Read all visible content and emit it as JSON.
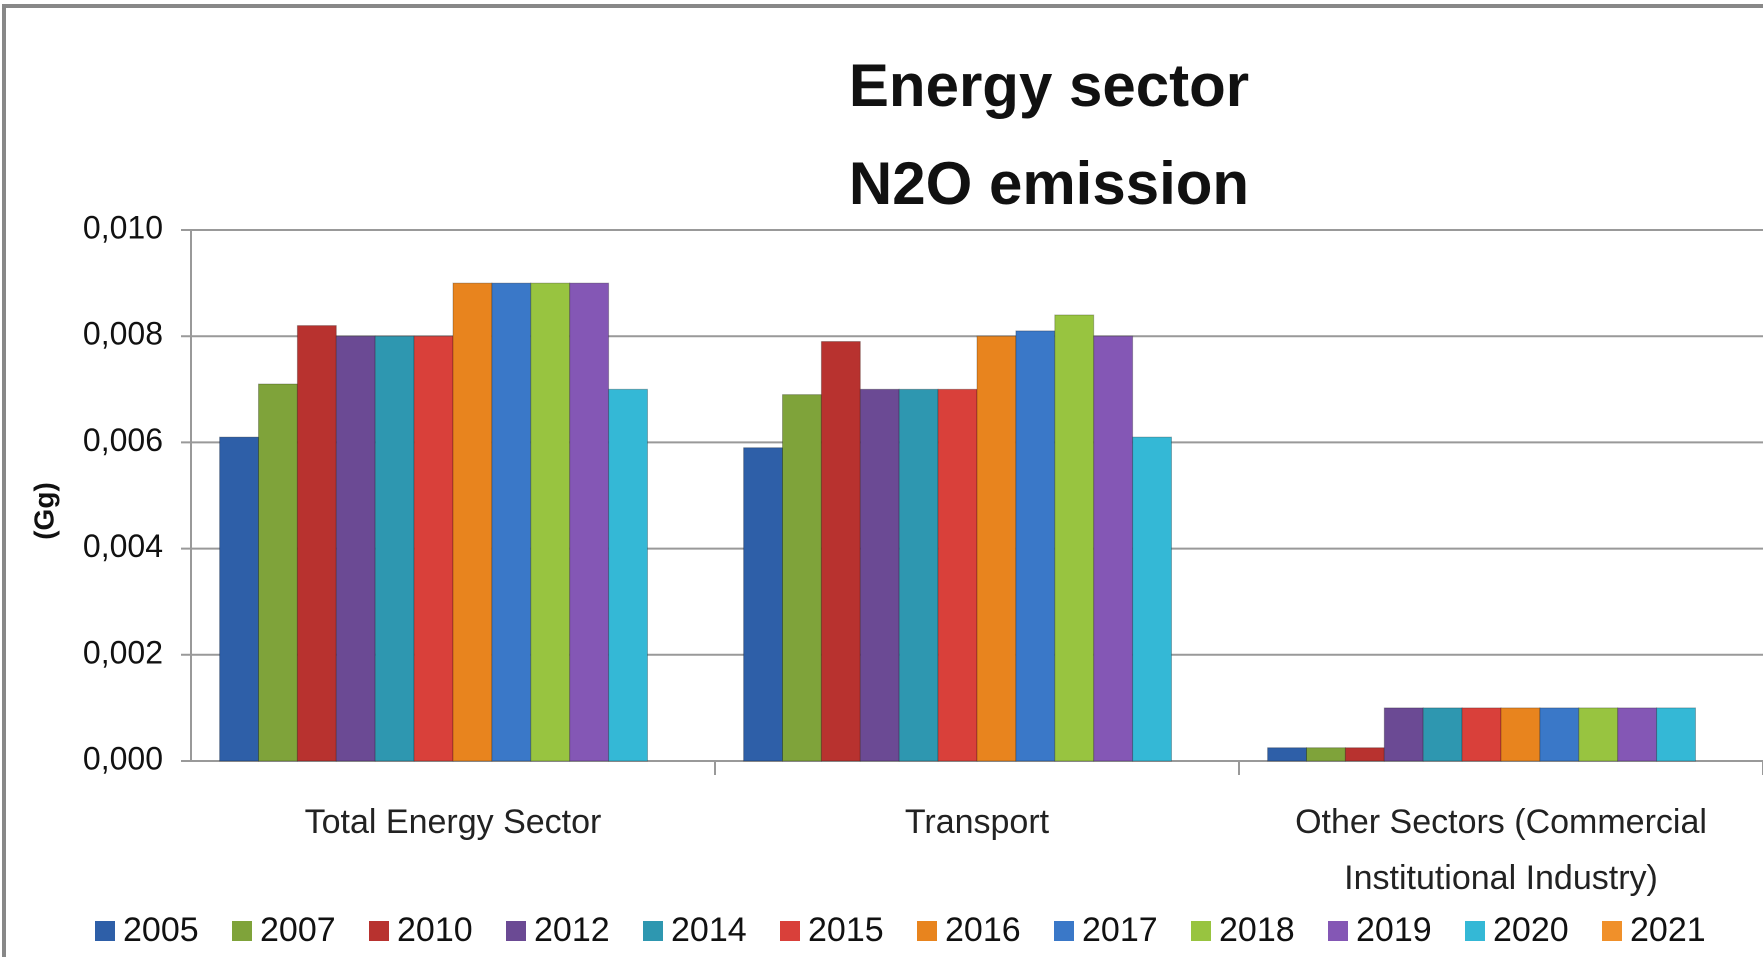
{
  "chart_data": {
    "type": "bar",
    "title": "Energy sector",
    "subtitle": "N2O emission",
    "y_label": "(Gg)",
    "categories": [
      "Total Energy Sector",
      "Transport",
      "Other Sectors (Commercial Institutional Industry)"
    ],
    "series": [
      {
        "name": "2005",
        "color": "#2e5fa8",
        "values": [
          0.0061,
          0.0059,
          0.00025
        ]
      },
      {
        "name": "2007",
        "color": "#7fa33a",
        "values": [
          0.0071,
          0.0069,
          0.00025
        ]
      },
      {
        "name": "2010",
        "color": "#b8322f",
        "values": [
          0.0082,
          0.0079,
          0.00025
        ]
      },
      {
        "name": "2012",
        "color": "#6b4a94",
        "values": [
          0.008,
          0.007,
          0.001
        ]
      },
      {
        "name": "2014",
        "color": "#2e97b0",
        "values": [
          0.008,
          0.007,
          0.001
        ]
      },
      {
        "name": "2015",
        "color": "#d9403a",
        "values": [
          0.008,
          0.007,
          0.001
        ]
      },
      {
        "name": "2016",
        "color": "#e8841e",
        "values": [
          0.009,
          0.008,
          0.001
        ]
      },
      {
        "name": "2017",
        "color": "#3a78c8",
        "values": [
          0.009,
          0.0081,
          0.001
        ]
      },
      {
        "name": "2018",
        "color": "#98c440",
        "values": [
          0.009,
          0.0084,
          0.001
        ]
      },
      {
        "name": "2019",
        "color": "#8457b5",
        "values": [
          0.009,
          0.008,
          0.001
        ]
      },
      {
        "name": "2020",
        "color": "#34b8d6",
        "values": [
          0.007,
          0.0061,
          0.001
        ]
      },
      {
        "name": "2021",
        "color": "#f0902a",
        "values": [
          null,
          null,
          null
        ]
      }
    ],
    "ylim": [
      0,
      0.01
    ],
    "yticks": [
      {
        "value": 0,
        "label": "0,000"
      },
      {
        "value": 0.002,
        "label": "0,002"
      },
      {
        "value": 0.004,
        "label": "0,004"
      },
      {
        "value": 0.006,
        "label": "0,006"
      },
      {
        "value": 0.008,
        "label": "0,008"
      },
      {
        "value": 0.01,
        "label": "0,010"
      }
    ],
    "grid": true,
    "legend": "bottom"
  }
}
